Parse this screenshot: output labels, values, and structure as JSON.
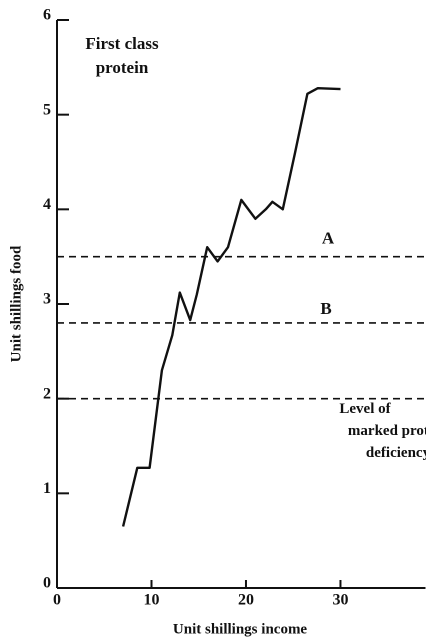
{
  "chart_data": {
    "type": "line",
    "annotation": [
      "First class",
      "protein"
    ],
    "xlabel": "Unit shillings income",
    "ylabel": "Unit shillings food",
    "xlim": [
      0,
      39
    ],
    "ylim": [
      0,
      6
    ],
    "xticks": [
      0,
      10,
      20,
      30
    ],
    "yticks": [
      0,
      1,
      2,
      3,
      4,
      5,
      6
    ],
    "series": [
      {
        "color": "#111111",
        "x": [
          7,
          8.5,
          9.8,
          11.1,
          12.2,
          13,
          14.1,
          14.8,
          15.9,
          17,
          18.1,
          19.5,
          21,
          22.1,
          22.8,
          23.9,
          25.2,
          26.5,
          27.6,
          30
        ],
        "values": [
          0.65,
          1.27,
          1.27,
          2.3,
          2.67,
          3.12,
          2.83,
          3.1,
          3.6,
          3.45,
          3.6,
          4.1,
          3.9,
          4.0,
          4.08,
          4.0,
          4.6,
          5.22,
          5.28,
          5.27
        ]
      }
    ],
    "reference_lines": [
      {
        "value": 3.5,
        "label": [
          "A"
        ]
      },
      {
        "value": 2.8,
        "label": [
          "B"
        ]
      },
      {
        "value": 2.0,
        "label": [
          "Level of",
          "marked protein",
          "deficiency"
        ]
      }
    ]
  }
}
